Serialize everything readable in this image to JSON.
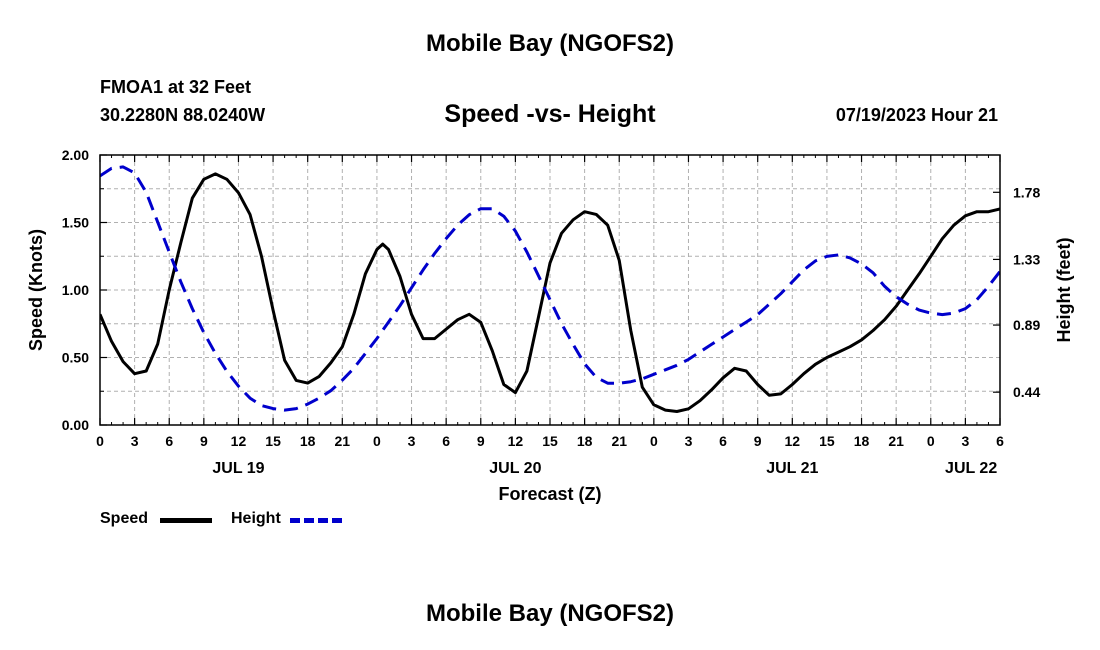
{
  "page": {
    "title_top": "Mobile Bay (NGOFS2)",
    "station": "FMOA1 at 32 Feet",
    "coords": "30.2280N  88.0240W",
    "subtitle": "Speed -vs- Height",
    "datetime": "07/19/2023 Hour 21",
    "title_bottom": "Mobile Bay (NGOFS2)"
  },
  "chart_data": {
    "type": "line",
    "title": "Speed -vs- Height",
    "xlabel": "Forecast (Z)",
    "ylabel": "Speed (Knots)",
    "y2label": "Height (feet)",
    "x_unit": "hours since 2023-07-19 00Z",
    "xlim": [
      0,
      78
    ],
    "ylim": [
      0,
      2.0
    ],
    "y2lim": [
      0.22,
      2.03
    ],
    "x_tick_values": [
      0,
      3,
      6,
      9,
      12,
      15,
      18,
      21,
      24,
      27,
      30,
      33,
      36,
      39,
      42,
      45,
      48,
      51,
      54,
      57,
      60,
      63,
      66,
      69,
      72,
      75,
      78
    ],
    "x_tick_labels": [
      "0",
      "3",
      "6",
      "9",
      "12",
      "15",
      "18",
      "21",
      "0",
      "3",
      "6",
      "9",
      "12",
      "15",
      "18",
      "21",
      "0",
      "3",
      "6",
      "9",
      "12",
      "15",
      "18",
      "21",
      "0",
      "3",
      "6"
    ],
    "date_labels": [
      {
        "x": 12,
        "text": "JUL 19"
      },
      {
        "x": 36,
        "text": "JUL 20"
      },
      {
        "x": 60,
        "text": "JUL 21"
      },
      {
        "x": 75.5,
        "text": "JUL 22"
      }
    ],
    "y_ticks": [
      {
        "value": 0.0,
        "label": "0.00"
      },
      {
        "value": 0.5,
        "label": "0.50"
      },
      {
        "value": 1.0,
        "label": "1.00"
      },
      {
        "value": 1.5,
        "label": "1.50"
      },
      {
        "value": 2.0,
        "label": "2.00"
      }
    ],
    "y2_ticks": [
      {
        "value": 0.44,
        "label": "0.44"
      },
      {
        "value": 0.89,
        "label": "0.89"
      },
      {
        "value": 1.33,
        "label": "1.33"
      },
      {
        "value": 1.78,
        "label": "1.78"
      }
    ],
    "grid": true,
    "legend_position": "bottom-left",
    "series": [
      {
        "name": "Speed",
        "color": "#000000",
        "style": "solid",
        "axis": "left",
        "points": [
          [
            0,
            0.82
          ],
          [
            1,
            0.62
          ],
          [
            2,
            0.47
          ],
          [
            3,
            0.38
          ],
          [
            4,
            0.4
          ],
          [
            5,
            0.6
          ],
          [
            6,
            1.0
          ],
          [
            7,
            1.35
          ],
          [
            8,
            1.68
          ],
          [
            9,
            1.82
          ],
          [
            10,
            1.86
          ],
          [
            11,
            1.82
          ],
          [
            12,
            1.72
          ],
          [
            13,
            1.56
          ],
          [
            14,
            1.25
          ],
          [
            15,
            0.85
          ],
          [
            16,
            0.48
          ],
          [
            17,
            0.33
          ],
          [
            18,
            0.31
          ],
          [
            19,
            0.36
          ],
          [
            20,
            0.46
          ],
          [
            21,
            0.58
          ],
          [
            22,
            0.82
          ],
          [
            23,
            1.12
          ],
          [
            24,
            1.3
          ],
          [
            24.5,
            1.34
          ],
          [
            25,
            1.3
          ],
          [
            26,
            1.1
          ],
          [
            27,
            0.82
          ],
          [
            28,
            0.64
          ],
          [
            29,
            0.64
          ],
          [
            30,
            0.71
          ],
          [
            31,
            0.78
          ],
          [
            32,
            0.82
          ],
          [
            33,
            0.76
          ],
          [
            34,
            0.55
          ],
          [
            35,
            0.3
          ],
          [
            36,
            0.24
          ],
          [
            37,
            0.4
          ],
          [
            38,
            0.8
          ],
          [
            39,
            1.2
          ],
          [
            40,
            1.42
          ],
          [
            41,
            1.52
          ],
          [
            42,
            1.58
          ],
          [
            43,
            1.56
          ],
          [
            44,
            1.48
          ],
          [
            45,
            1.22
          ],
          [
            46,
            0.7
          ],
          [
            47,
            0.28
          ],
          [
            48,
            0.15
          ],
          [
            49,
            0.11
          ],
          [
            50,
            0.1
          ],
          [
            51,
            0.12
          ],
          [
            52,
            0.18
          ],
          [
            53,
            0.26
          ],
          [
            54,
            0.35
          ],
          [
            55,
            0.42
          ],
          [
            56,
            0.4
          ],
          [
            57,
            0.3
          ],
          [
            58,
            0.22
          ],
          [
            59,
            0.23
          ],
          [
            60,
            0.3
          ],
          [
            61,
            0.38
          ],
          [
            62,
            0.45
          ],
          [
            63,
            0.5
          ],
          [
            64,
            0.54
          ],
          [
            65,
            0.58
          ],
          [
            66,
            0.63
          ],
          [
            67,
            0.7
          ],
          [
            68,
            0.78
          ],
          [
            69,
            0.88
          ],
          [
            70,
            1.0
          ],
          [
            71,
            1.12
          ],
          [
            72,
            1.25
          ],
          [
            73,
            1.38
          ],
          [
            74,
            1.48
          ],
          [
            75,
            1.55
          ],
          [
            76,
            1.58
          ],
          [
            77,
            1.58
          ],
          [
            78,
            1.6
          ]
        ]
      },
      {
        "name": "Height",
        "color": "#0000cc",
        "style": "dashed",
        "axis": "right",
        "points": [
          [
            0,
            1.89
          ],
          [
            1,
            1.94
          ],
          [
            2,
            1.95
          ],
          [
            3,
            1.91
          ],
          [
            4,
            1.78
          ],
          [
            5,
            1.58
          ],
          [
            6,
            1.38
          ],
          [
            7,
            1.18
          ],
          [
            8,
            1.0
          ],
          [
            9,
            0.84
          ],
          [
            10,
            0.7
          ],
          [
            11,
            0.58
          ],
          [
            12,
            0.48
          ],
          [
            13,
            0.4
          ],
          [
            14,
            0.35
          ],
          [
            15,
            0.33
          ],
          [
            16,
            0.32
          ],
          [
            17,
            0.33
          ],
          [
            18,
            0.36
          ],
          [
            19,
            0.4
          ],
          [
            20,
            0.45
          ],
          [
            21,
            0.52
          ],
          [
            22,
            0.6
          ],
          [
            23,
            0.7
          ],
          [
            24,
            0.8
          ],
          [
            25,
            0.91
          ],
          [
            26,
            1.02
          ],
          [
            27,
            1.14
          ],
          [
            28,
            1.26
          ],
          [
            29,
            1.37
          ],
          [
            30,
            1.47
          ],
          [
            31,
            1.56
          ],
          [
            32,
            1.63
          ],
          [
            33,
            1.67
          ],
          [
            34,
            1.67
          ],
          [
            35,
            1.62
          ],
          [
            36,
            1.52
          ],
          [
            37,
            1.38
          ],
          [
            38,
            1.22
          ],
          [
            39,
            1.06
          ],
          [
            40,
            0.9
          ],
          [
            41,
            0.76
          ],
          [
            42,
            0.63
          ],
          [
            43,
            0.54
          ],
          [
            44,
            0.5
          ],
          [
            45,
            0.5
          ],
          [
            46,
            0.51
          ],
          [
            47,
            0.53
          ],
          [
            48,
            0.56
          ],
          [
            49,
            0.59
          ],
          [
            50,
            0.62
          ],
          [
            51,
            0.66
          ],
          [
            52,
            0.71
          ],
          [
            53,
            0.76
          ],
          [
            54,
            0.81
          ],
          [
            55,
            0.86
          ],
          [
            56,
            0.91
          ],
          [
            57,
            0.96
          ],
          [
            58,
            1.03
          ],
          [
            59,
            1.1
          ],
          [
            60,
            1.18
          ],
          [
            61,
            1.26
          ],
          [
            62,
            1.32
          ],
          [
            63,
            1.35
          ],
          [
            64,
            1.36
          ],
          [
            65,
            1.34
          ],
          [
            66,
            1.3
          ],
          [
            67,
            1.24
          ],
          [
            68,
            1.15
          ],
          [
            69,
            1.08
          ],
          [
            70,
            1.03
          ],
          [
            71,
            0.99
          ],
          [
            72,
            0.97
          ],
          [
            73,
            0.96
          ],
          [
            74,
            0.97
          ],
          [
            75,
            1.0
          ],
          [
            76,
            1.06
          ],
          [
            77,
            1.15
          ],
          [
            78,
            1.25
          ]
        ]
      }
    ]
  }
}
